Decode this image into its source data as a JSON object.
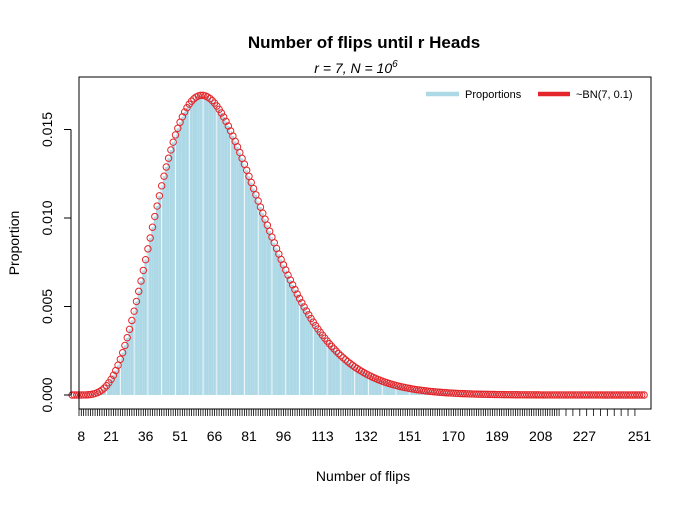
{
  "chart_data": {
    "type": "bar",
    "title": "Number of flips until r Heads",
    "subtitle": {
      "r_part": "r = 7,  N = 10",
      "exponent": "6"
    },
    "xlabel": "Number of flips",
    "ylabel": "Proportion",
    "xlim": [
      7,
      256
    ],
    "ylim": [
      0,
      0.01725
    ],
    "x_tick_labels": [
      "8",
      "21",
      "36",
      "51",
      "66",
      "81",
      "96",
      "113",
      "132",
      "151",
      "170",
      "189",
      "208",
      "227",
      "251"
    ],
    "y_tick_labels": [
      "0.000",
      "0.005",
      "0.010",
      "0.015"
    ],
    "y_ticks": [
      0,
      0.005,
      0.01,
      0.015
    ],
    "legend": {
      "position": "top-right",
      "entries": [
        {
          "label": "Proportions",
          "color": "#ADD8E6"
        },
        {
          "label": "~BN(7, 0.1)",
          "color": "#E3262B"
        }
      ]
    },
    "distribution": {
      "r": 7,
      "p": 0.1,
      "support_start": 7,
      "support_end": 251
    },
    "colors": {
      "bars": "#ADD8E6",
      "bar_outline": "#ffffff",
      "points": "#E3262B"
    },
    "observed_x_range": [
      7,
      251
    ]
  }
}
